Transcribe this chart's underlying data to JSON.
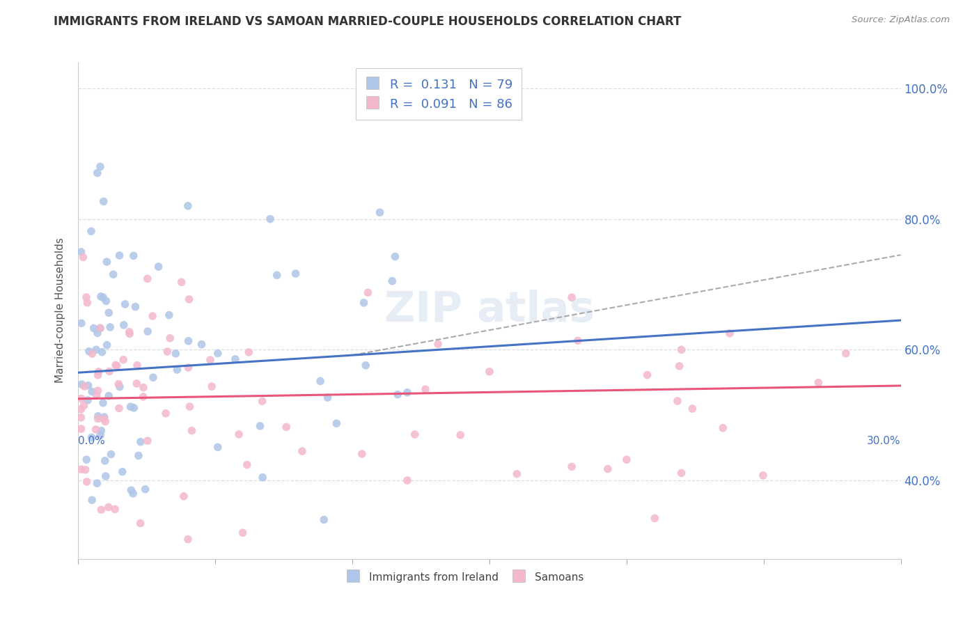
{
  "title": "IMMIGRANTS FROM IRELAND VS SAMOAN MARRIED-COUPLE HOUSEHOLDS CORRELATION CHART",
  "source": "Source: ZipAtlas.com",
  "ylabel": "Married-couple Households",
  "xmin": 0.0,
  "xmax": 0.3,
  "ymin": 0.28,
  "ymax": 1.04,
  "yticks": [
    0.4,
    0.6,
    0.8,
    1.0
  ],
  "ytick_labels": [
    "40.0%",
    "60.0%",
    "80.0%",
    "100.0%"
  ],
  "blue_color": "#aec6e8",
  "pink_color": "#f4b8ce",
  "line_blue": "#4472c4",
  "line_pink": "#e8567a",
  "line_dashed_color": "#aaaaaa",
  "seed": 7
}
